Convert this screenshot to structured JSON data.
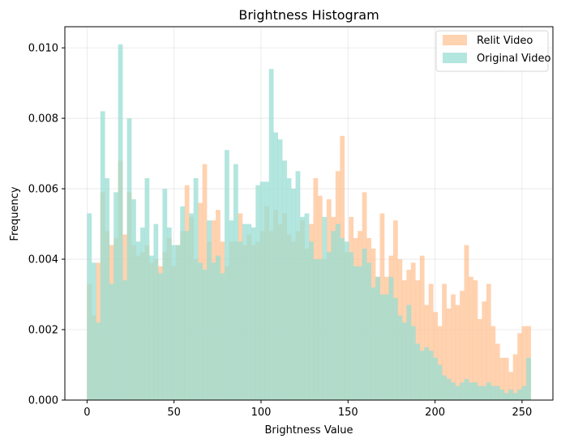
{
  "chart_data": {
    "type": "bar",
    "title": "Brightness Histogram",
    "xlabel": "Brightness Value",
    "ylabel": "Frequency",
    "xlim": [
      -12.75,
      267.75
    ],
    "ylim": [
      0,
      0.0106
    ],
    "xticks": [
      0,
      50,
      100,
      150,
      200,
      250
    ],
    "xtick_labels": [
      "0",
      "50",
      "100",
      "150",
      "200",
      "250"
    ],
    "yticks": [
      0,
      0.002,
      0.004,
      0.006,
      0.008,
      0.01
    ],
    "ytick_labels": [
      "0.000",
      "0.002",
      "0.004",
      "0.006",
      "0.008",
      "0.010"
    ],
    "grid": true,
    "legend_position": "upper right",
    "bins": {
      "start": 0,
      "end": 255,
      "count": 100
    },
    "series": [
      {
        "name": "Relit Video",
        "color": "#ffbf8f",
        "opacity": 0.7,
        "values": [
          0.0033,
          0.0024,
          0.0039,
          0.0059,
          0.0048,
          0.0044,
          0.0046,
          0.0068,
          0.0047,
          0.0059,
          0.0044,
          0.0041,
          0.0042,
          0.0044,
          0.0039,
          0.004,
          0.0038,
          0.0042,
          0.0046,
          0.0038,
          0.0044,
          0.0048,
          0.0061,
          0.0052,
          0.004,
          0.0056,
          0.0067,
          0.0045,
          0.0051,
          0.0054,
          0.0045,
          0.0038,
          0.0045,
          0.0045,
          0.0053,
          0.0044,
          0.0047,
          0.0044,
          0.0045,
          0.0048,
          0.0055,
          0.0048,
          0.0054,
          0.005,
          0.0053,
          0.0047,
          0.0045,
          0.0048,
          0.0051,
          0.0043,
          0.005,
          0.0063,
          0.0058,
          0.004,
          0.0057,
          0.0052,
          0.0065,
          0.0075,
          0.0042,
          0.0052,
          0.0046,
          0.0048,
          0.0059,
          0.0046,
          0.0043,
          0.0035,
          0.0053,
          0.0035,
          0.0041,
          0.0051,
          0.004,
          0.0034,
          0.0037,
          0.0039,
          0.0034,
          0.0041,
          0.0027,
          0.0033,
          0.0025,
          0.0021,
          0.0033,
          0.0026,
          0.003,
          0.0027,
          0.0031,
          0.0044,
          0.0035,
          0.0034,
          0.0023,
          0.0028,
          0.0033,
          0.0021,
          0.0016,
          0.0012,
          0.0012,
          0.0008,
          0.0013,
          0.0019,
          0.0021,
          0.0021
        ]
      },
      {
        "name": "Original Video",
        "color": "#99ddd3",
        "opacity": 0.75,
        "values": [
          0.0053,
          0.0039,
          0.0022,
          0.0082,
          0.0063,
          0.0033,
          0.0059,
          0.0101,
          0.0034,
          0.008,
          0.0057,
          0.0045,
          0.0049,
          0.0063,
          0.0041,
          0.005,
          0.0036,
          0.006,
          0.0049,
          0.0044,
          0.0044,
          0.0055,
          0.0048,
          0.0053,
          0.0063,
          0.0039,
          0.0037,
          0.0051,
          0.0039,
          0.0041,
          0.0036,
          0.0071,
          0.0051,
          0.0067,
          0.0045,
          0.005,
          0.005,
          0.0049,
          0.0061,
          0.0062,
          0.0062,
          0.0094,
          0.0076,
          0.0074,
          0.0068,
          0.0063,
          0.006,
          0.0065,
          0.0052,
          0.0053,
          0.0045,
          0.004,
          0.004,
          0.0052,
          0.0042,
          0.0048,
          0.005,
          0.0046,
          0.0045,
          0.0042,
          0.0038,
          0.0038,
          0.0043,
          0.0039,
          0.0032,
          0.0035,
          0.003,
          0.003,
          0.0035,
          0.0029,
          0.0024,
          0.0022,
          0.0027,
          0.0021,
          0.0016,
          0.0014,
          0.0015,
          0.0014,
          0.0012,
          0.001,
          0.0007,
          0.0006,
          0.0005,
          0.0004,
          0.0005,
          0.0006,
          0.0005,
          0.0005,
          0.0004,
          0.0004,
          0.0005,
          0.0004,
          0.0004,
          0.0003,
          0.0002,
          0.0003,
          0.0002,
          0.0003,
          0.0004,
          0.0012
        ]
      }
    ]
  }
}
